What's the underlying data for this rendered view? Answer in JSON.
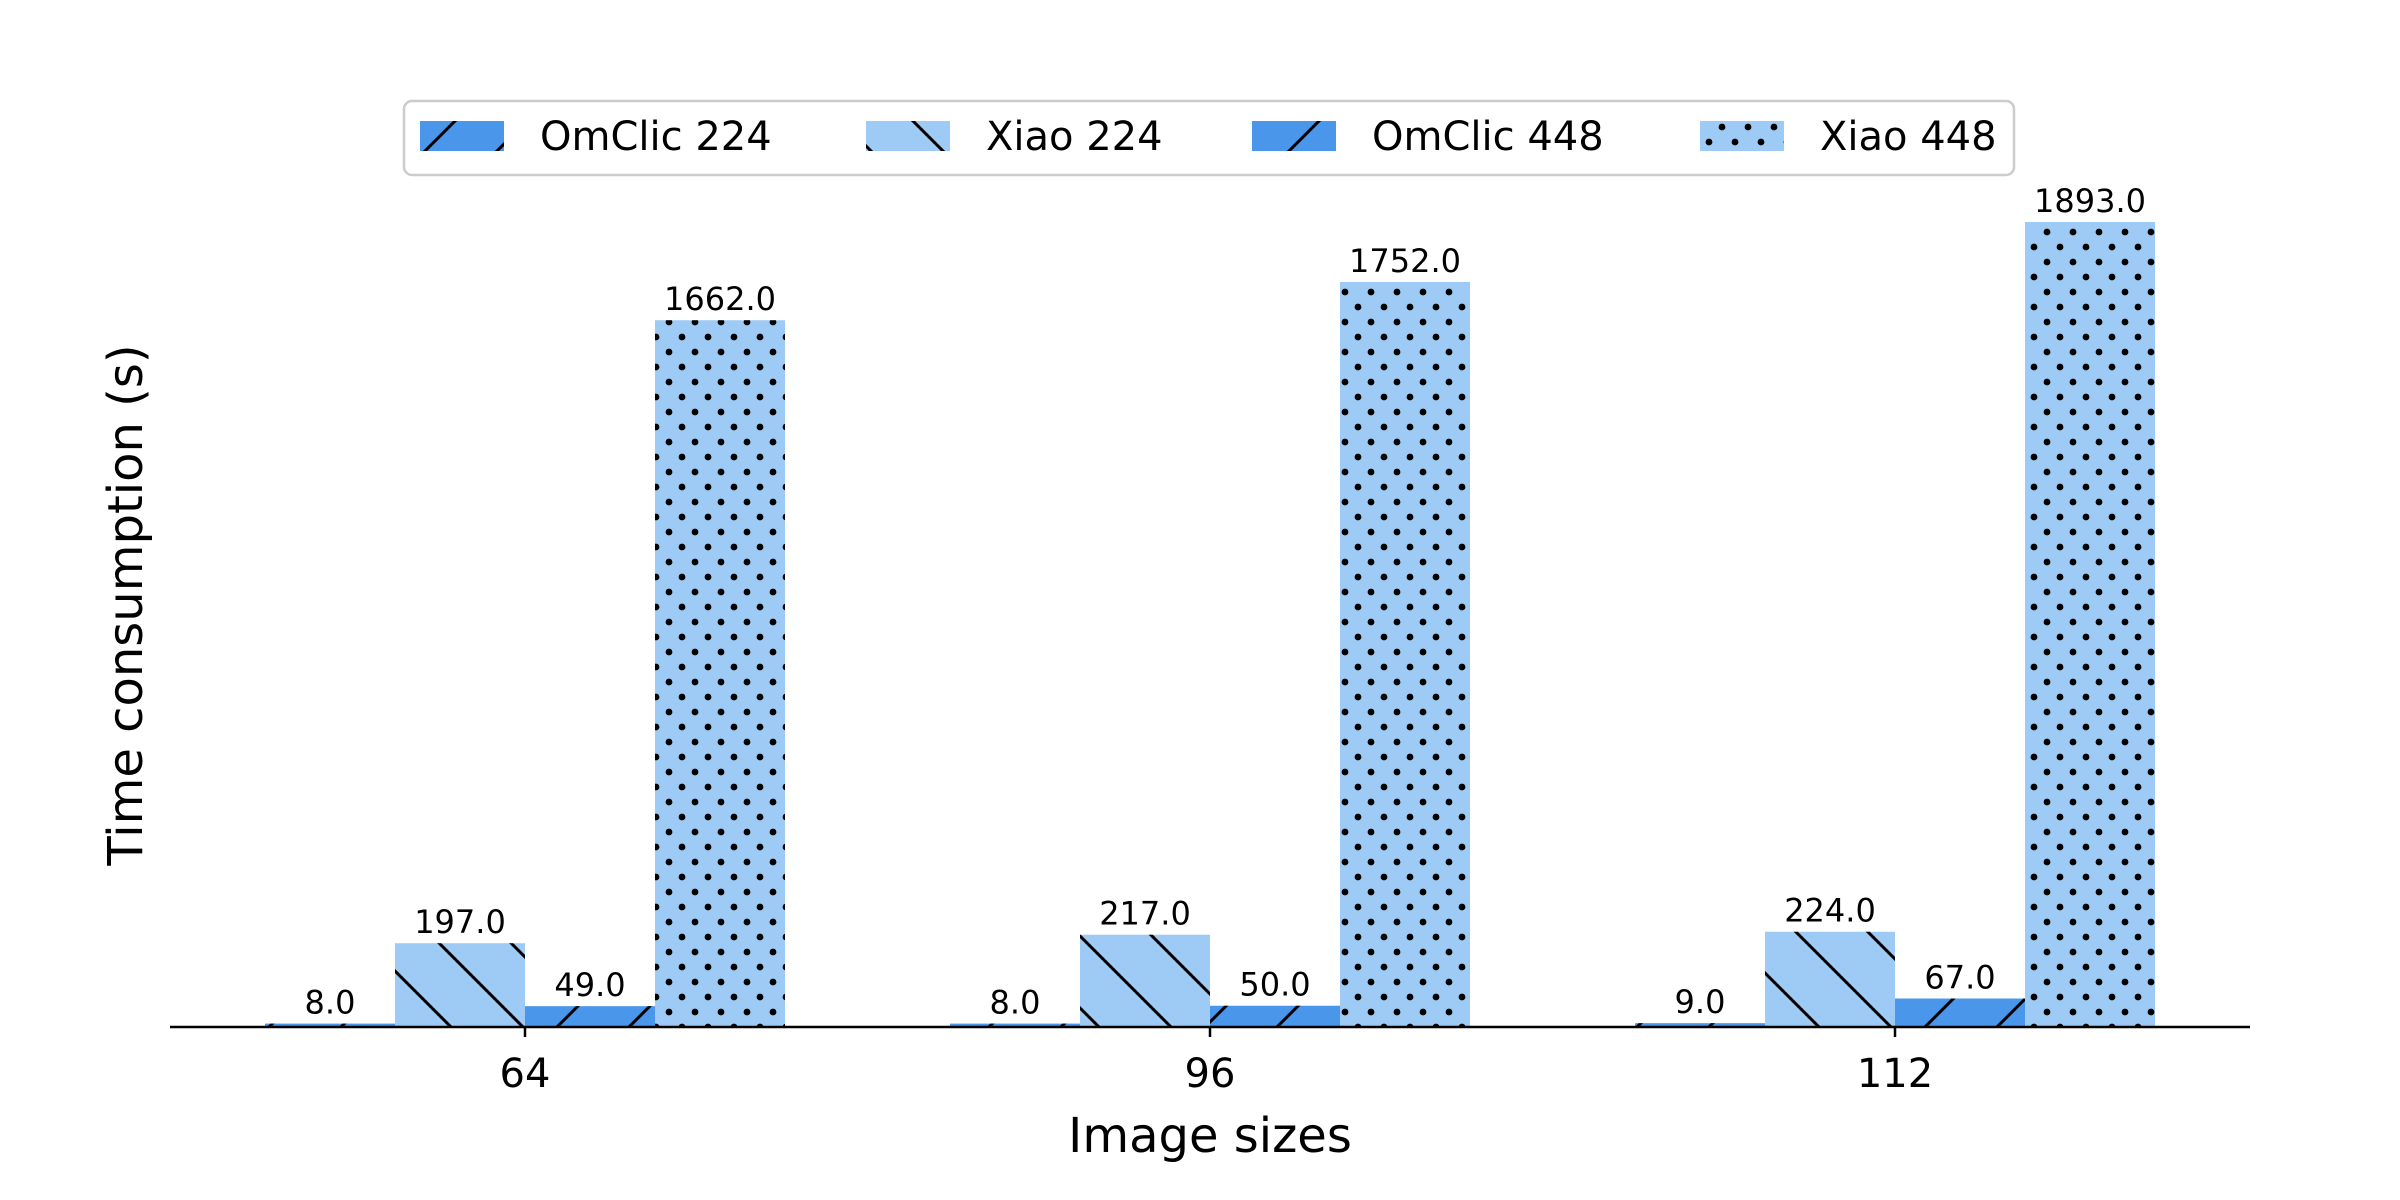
{
  "chart_data": {
    "type": "bar",
    "title": "",
    "xlabel": "Image sizes",
    "ylabel": "Time consumption (s)",
    "categories": [
      "64",
      "96",
      "112"
    ],
    "ylim": [
      0,
      2000
    ],
    "grid": false,
    "legend_position": "top-center",
    "series": [
      {
        "name": "OmClic 224",
        "values": [
          8.0,
          8.0,
          9.0
        ],
        "labels": [
          "8.0",
          "8.0",
          "9.0"
        ],
        "color": "#4a96ea",
        "hatch": "forward-diagonal"
      },
      {
        "name": "Xiao 224",
        "values": [
          197.0,
          217.0,
          224.0
        ],
        "labels": [
          "197.0",
          "217.0",
          "224.0"
        ],
        "color": "#9ecbf5",
        "hatch": "back-diagonal"
      },
      {
        "name": "OmClic 448",
        "values": [
          49.0,
          50.0,
          67.0
        ],
        "labels": [
          "49.0",
          "50.0",
          "67.0"
        ],
        "color": "#4a96ea",
        "hatch": "forward-diagonal"
      },
      {
        "name": "Xiao 448",
        "values": [
          1662.0,
          1752.0,
          1893.0
        ],
        "labels": [
          "1662.0",
          "1752.0",
          "1893.0"
        ],
        "color": "#9ecbf5",
        "hatch": "dots"
      }
    ]
  }
}
